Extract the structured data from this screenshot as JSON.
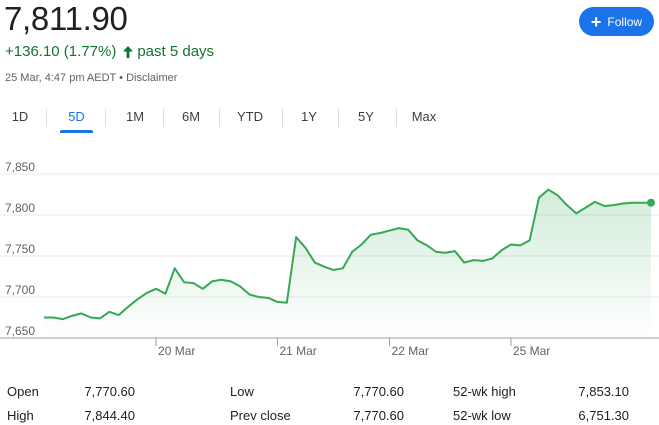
{
  "header": {
    "price": "7,811.90",
    "change": "+136.10 (1.77%)",
    "period": "past 5 days",
    "timestamp": "25 Mar, 4:47 pm AEDT",
    "separator": "•",
    "disclaimer": "Disclaimer"
  },
  "follow_button": {
    "label": "Follow",
    "color": "#1a73e8"
  },
  "tabs": [
    {
      "label": "1D"
    },
    {
      "label": "5D",
      "active": true
    },
    {
      "label": "1M"
    },
    {
      "label": "6M"
    },
    {
      "label": "YTD"
    },
    {
      "label": "1Y"
    },
    {
      "label": "5Y"
    },
    {
      "label": "Max"
    }
  ],
  "colors": {
    "up": "#137333",
    "line": "#34a853",
    "accent": "#1a73e8"
  },
  "chart_data": {
    "type": "area",
    "title": "",
    "xlabel": "",
    "ylabel": "",
    "ylim": [
      7650,
      7850
    ],
    "yticks": [
      "7,850",
      "7,800",
      "7,750",
      "7,700",
      "7,650"
    ],
    "ytick_values": [
      7850,
      7800,
      7750,
      7700,
      7650
    ],
    "xtick_labels": [
      "20 Mar",
      "21 Mar",
      "22 Mar",
      "25 Mar"
    ],
    "xtick_index": [
      12,
      25,
      37,
      50
    ],
    "grid": true,
    "last_value": 7811.9,
    "values": [
      7675,
      7675,
      7673,
      7677,
      7680,
      7675,
      7674,
      7682,
      7678,
      7688,
      7697,
      7705,
      7710,
      7704,
      7735,
      7718,
      7717,
      7710,
      7719,
      7721,
      7719,
      7713,
      7703,
      7700,
      7699,
      7694,
      7693,
      7773,
      7760,
      7742,
      7737,
      7733,
      7735,
      7755,
      7764,
      7776,
      7778,
      7781,
      7784,
      7782,
      7769,
      7763,
      7755,
      7754,
      7756,
      7742,
      7745,
      7744,
      7747,
      7757,
      7764,
      7763,
      7769,
      7821,
      7831,
      7824,
      7812,
      7802,
      7809,
      7816,
      7811,
      7812,
      7814,
      7815,
      7815,
      7815
    ]
  },
  "stats": [
    {
      "label": "Open",
      "value": "7,770.60"
    },
    {
      "label": "High",
      "value": "7,844.40"
    },
    {
      "label": "Low",
      "value": "7,770.60"
    },
    {
      "label": "Prev close",
      "value": "7,770.60"
    },
    {
      "label": "52-wk high",
      "value": "7,853.10"
    },
    {
      "label": "52-wk low",
      "value": "6,751.30"
    }
  ]
}
